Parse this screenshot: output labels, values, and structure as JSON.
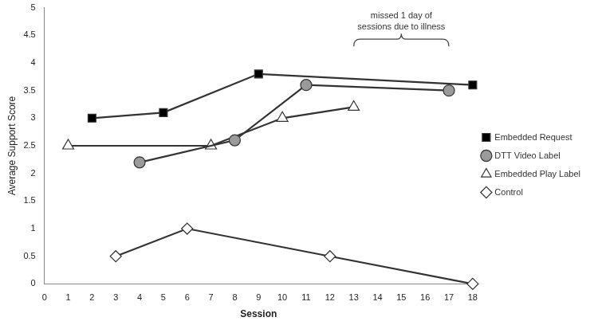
{
  "chart_data": {
    "type": "line",
    "x_label": "Session",
    "y_label": "Average Support Score",
    "xlim": [
      0,
      18
    ],
    "xticks": [
      0,
      1,
      2,
      3,
      4,
      5,
      6,
      7,
      8,
      9,
      10,
      11,
      12,
      13,
      14,
      15,
      16,
      17,
      18
    ],
    "ylim": [
      0,
      5
    ],
    "yticks": [
      0,
      0.5,
      1,
      1.5,
      2,
      2.5,
      3,
      3.5,
      4,
      4.5,
      5
    ],
    "grid": false,
    "legend": "right",
    "series": [
      {
        "name": "Embedded Request",
        "color": "#000000",
        "marker": "square",
        "x": [
          2,
          5,
          9,
          18
        ],
        "values": [
          3.0,
          3.1,
          3.8,
          3.6
        ]
      },
      {
        "name": "DTT Video Label",
        "color": "#9a9a9a",
        "marker": "circle",
        "x": [
          4,
          8,
          11,
          17
        ],
        "values": [
          2.2,
          2.6,
          3.6,
          3.5
        ]
      },
      {
        "name": "Embedded Play Label",
        "color": "#ffffff",
        "marker": "triangle",
        "x": [
          1,
          7,
          10,
          13
        ],
        "values": [
          2.5,
          2.5,
          3.0,
          3.2
        ]
      },
      {
        "name": "Control",
        "color": "#ffffff",
        "marker": "diamond",
        "x": [
          3,
          6,
          12,
          18
        ],
        "values": [
          0.5,
          1.0,
          0.5,
          0
        ]
      }
    ],
    "annotations": [
      {
        "text": [
          "missed 1 day of",
          "sessions due to illness"
        ],
        "x_range": [
          13,
          17
        ],
        "y": 4.3
      }
    ]
  }
}
